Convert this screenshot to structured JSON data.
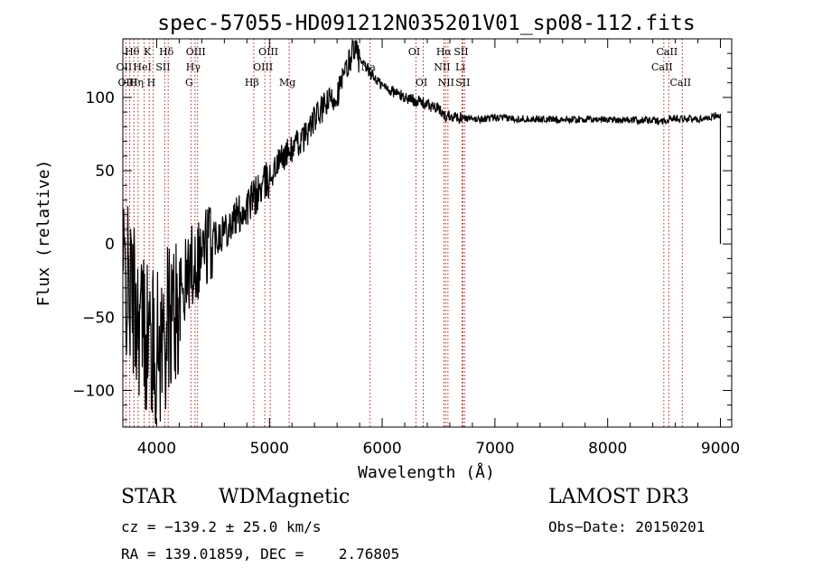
{
  "chart_data": {
    "type": "line",
    "title": "spec-57055-HD091212N035201V01_sp08-112.fits",
    "xlabel": "Wavelength (Å)",
    "ylabel": "Flux (relative)",
    "xlim": [
      3700,
      9100
    ],
    "ylim": [
      -125,
      140
    ],
    "x_ticks": [
      4000,
      5000,
      6000,
      7000,
      8000,
      9000
    ],
    "y_ticks": [
      -100,
      -50,
      0,
      50,
      100
    ],
    "series": [
      {
        "name": "spectrum",
        "x": [
          3700,
          3800,
          3900,
          4000,
          4100,
          4200,
          4300,
          4400,
          4500,
          4600,
          4700,
          4800,
          4900,
          5000,
          5100,
          5200,
          5300,
          5400,
          5500,
          5600,
          5700,
          5750,
          5800,
          5900,
          6000,
          6100,
          6200,
          6300,
          6400,
          6500,
          6560,
          6600,
          6700,
          6800,
          7000,
          7500,
          8000,
          8500,
          8600,
          8800,
          9000
        ],
        "y": [
          -20,
          -40,
          -60,
          -75,
          -55,
          -40,
          -15,
          -5,
          5,
          10,
          18,
          25,
          35,
          45,
          58,
          65,
          72,
          85,
          95,
          102,
          122,
          136,
          125,
          116,
          108,
          104,
          100,
          98,
          95,
          92,
          87,
          88,
          86,
          85,
          86,
          85,
          85,
          84,
          86,
          85,
          88
        ]
      }
    ],
    "lines": [
      {
        "name": "Hθ",
        "wl": 3798,
        "row": 0
      },
      {
        "name": "OII",
        "wl": 3727,
        "row": 1
      },
      {
        "name": "OIII",
        "wl": 3760,
        "row": 2
      },
      {
        "name": "Hη",
        "wl": 3835,
        "row": 2
      },
      {
        "name": "HeI",
        "wl": 3889,
        "row": 1
      },
      {
        "name": "K",
        "wl": 3934,
        "row": 0
      },
      {
        "name": "H",
        "wl": 3968,
        "row": 2
      },
      {
        "name": "SII",
        "wl": 4072,
        "row": 1
      },
      {
        "name": "Hδ",
        "wl": 4102,
        "row": 0
      },
      {
        "name": "G",
        "wl": 4304,
        "row": 2
      },
      {
        "name": "Hγ",
        "wl": 4340,
        "row": 1
      },
      {
        "name": "OIII",
        "wl": 4363,
        "row": 0
      },
      {
        "name": "Hβ",
        "wl": 4861,
        "row": 2
      },
      {
        "name": "OIII",
        "wl": 4959,
        "row": 1
      },
      {
        "name": "OIII",
        "wl": 5007,
        "row": 0
      },
      {
        "name": "Mg",
        "wl": 5175,
        "row": 2
      },
      {
        "name": "Na",
        "wl": 5893,
        "row": 1
      },
      {
        "name": "OI",
        "wl": 6300,
        "row": 0
      },
      {
        "name": "OI",
        "wl": 6364,
        "row": 2
      },
      {
        "name": "NII",
        "wl": 6548,
        "row": 1
      },
      {
        "name": "Hα",
        "wl": 6563,
        "row": 0
      },
      {
        "name": "NII",
        "wl": 6583,
        "row": 2
      },
      {
        "name": "Li",
        "wl": 6708,
        "row": 1
      },
      {
        "name": "SII",
        "wl": 6716,
        "row": 0
      },
      {
        "name": "SII",
        "wl": 6731,
        "row": 2
      },
      {
        "name": "CaII",
        "wl": 8498,
        "row": 1
      },
      {
        "name": "CaII",
        "wl": 8542,
        "row": 0
      },
      {
        "name": "CaII",
        "wl": 8662,
        "row": 2
      }
    ]
  },
  "info": {
    "class": "STAR",
    "subclass": "WDMagnetic",
    "survey": "LAMOST DR3",
    "cz": "cz = −139.2 ± 25.0 km/s",
    "obs_date": "Obs−Date: 20150201",
    "coords": "RA = 139.01859, DEC =    2.76805"
  }
}
